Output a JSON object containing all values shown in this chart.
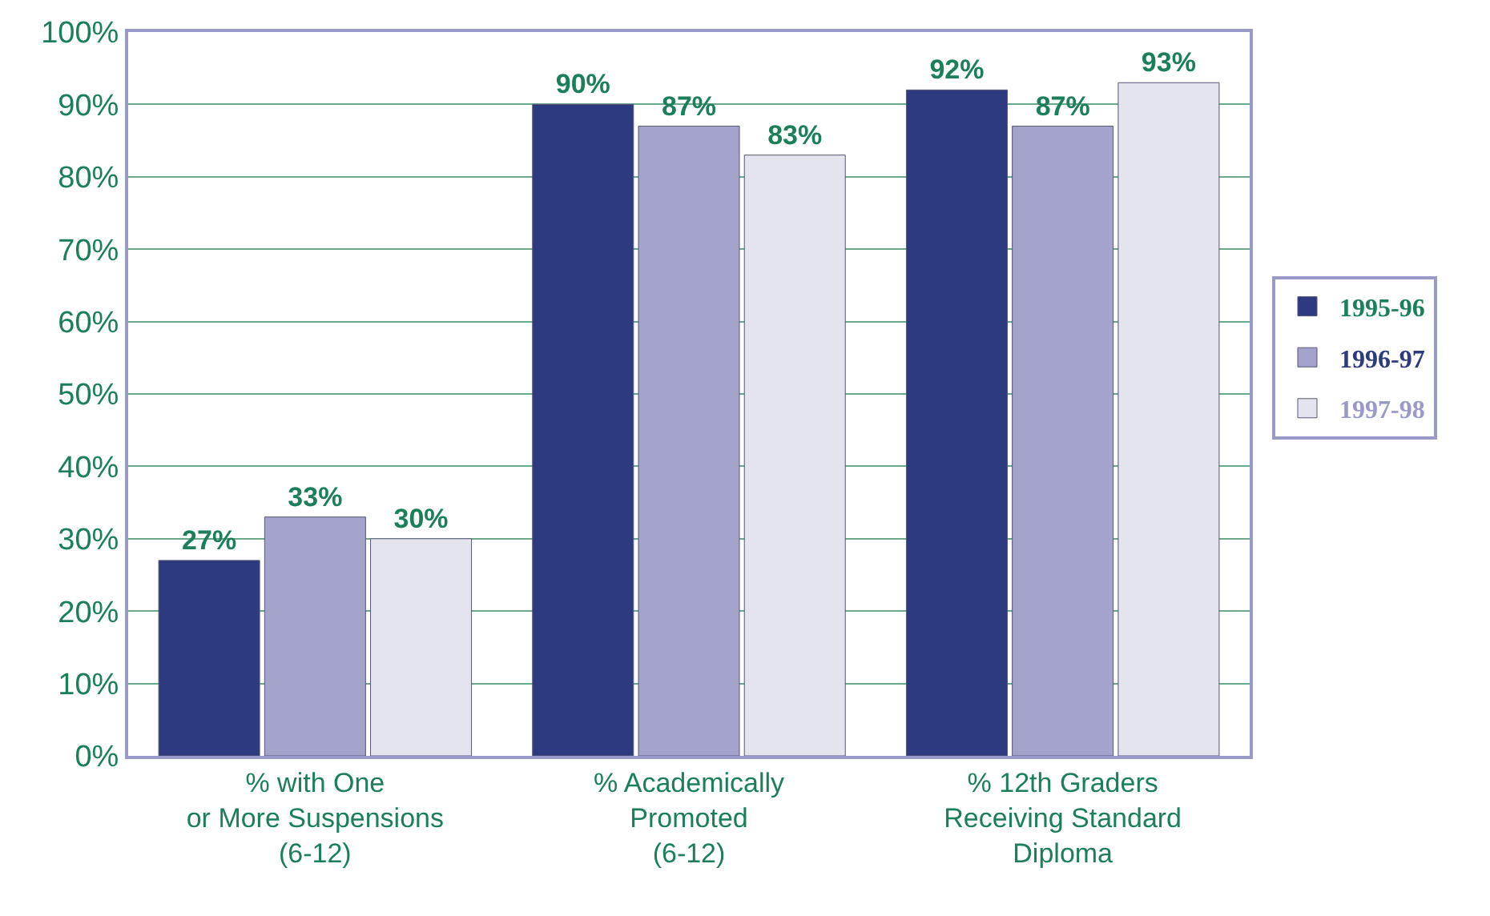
{
  "chart_data": {
    "type": "bar",
    "categories": [
      "% with One\nor More Suspensions\n(6-12)",
      "% Academically\nPromoted\n(6-12)",
      "% 12th Graders\nReceiving Standard\nDiploma"
    ],
    "series": [
      {
        "name": "1995-96",
        "color": "#2e3a80",
        "values": [
          27,
          90,
          92
        ],
        "value_labels": [
          "27%",
          "90%",
          "92%"
        ]
      },
      {
        "name": "1996-97",
        "color": "#a3a3cc",
        "values": [
          33,
          87,
          87
        ],
        "value_labels": [
          "33%",
          "87%",
          "87%"
        ]
      },
      {
        "name": "1997-98",
        "color": "#e4e4ef",
        "values": [
          30,
          83,
          93
        ],
        "value_labels": [
          "30%",
          "83%",
          "93%"
        ]
      }
    ],
    "ylim": [
      0,
      100
    ],
    "yticks": [
      {
        "value": 0,
        "label": "0%"
      },
      {
        "value": 10,
        "label": "10%"
      },
      {
        "value": 20,
        "label": "20%"
      },
      {
        "value": 30,
        "label": "30%"
      },
      {
        "value": 40,
        "label": "40%"
      },
      {
        "value": 50,
        "label": "50%"
      },
      {
        "value": 60,
        "label": "60%"
      },
      {
        "value": 70,
        "label": "70%"
      },
      {
        "value": 80,
        "label": "80%"
      },
      {
        "value": 90,
        "label": "90%"
      },
      {
        "value": 100,
        "label": "100%"
      }
    ],
    "grid": "y",
    "legend": "right"
  }
}
